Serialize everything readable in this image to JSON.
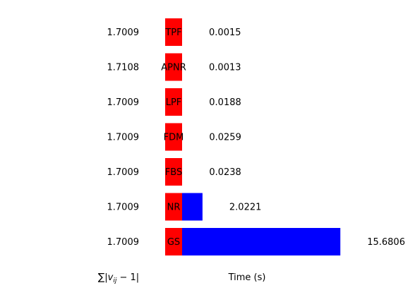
{
  "chart_data": {
    "type": "bar",
    "orientation": "horizontal",
    "categories": [
      "TPF",
      "APNR",
      "LPF",
      "FDM",
      "FBS",
      "NR",
      "GS"
    ],
    "mismatch_values": [
      1.7009,
      1.7108,
      1.7009,
      1.7009,
      1.7009,
      1.7009,
      1.7009
    ],
    "mismatch_labels": [
      "1.7009",
      "1.7108",
      "1.7009",
      "1.7009",
      "1.7009",
      "1.7009",
      "1.7009"
    ],
    "time_values": [
      0.0015,
      0.0013,
      0.0188,
      0.0259,
      0.0238,
      2.0221,
      15.6806
    ],
    "time_labels": [
      "0.0015",
      "0.0013",
      "0.0188",
      "0.0259",
      "0.0238",
      "2.0221",
      "15.6806"
    ],
    "left_axis_label": "∑|v_ij − 1|",
    "xlabel": "Time (s)",
    "ylabel": "",
    "title": "",
    "grid": false,
    "colors": {
      "method_bar": "#ff0000",
      "time_bar": "#0000ff"
    }
  }
}
